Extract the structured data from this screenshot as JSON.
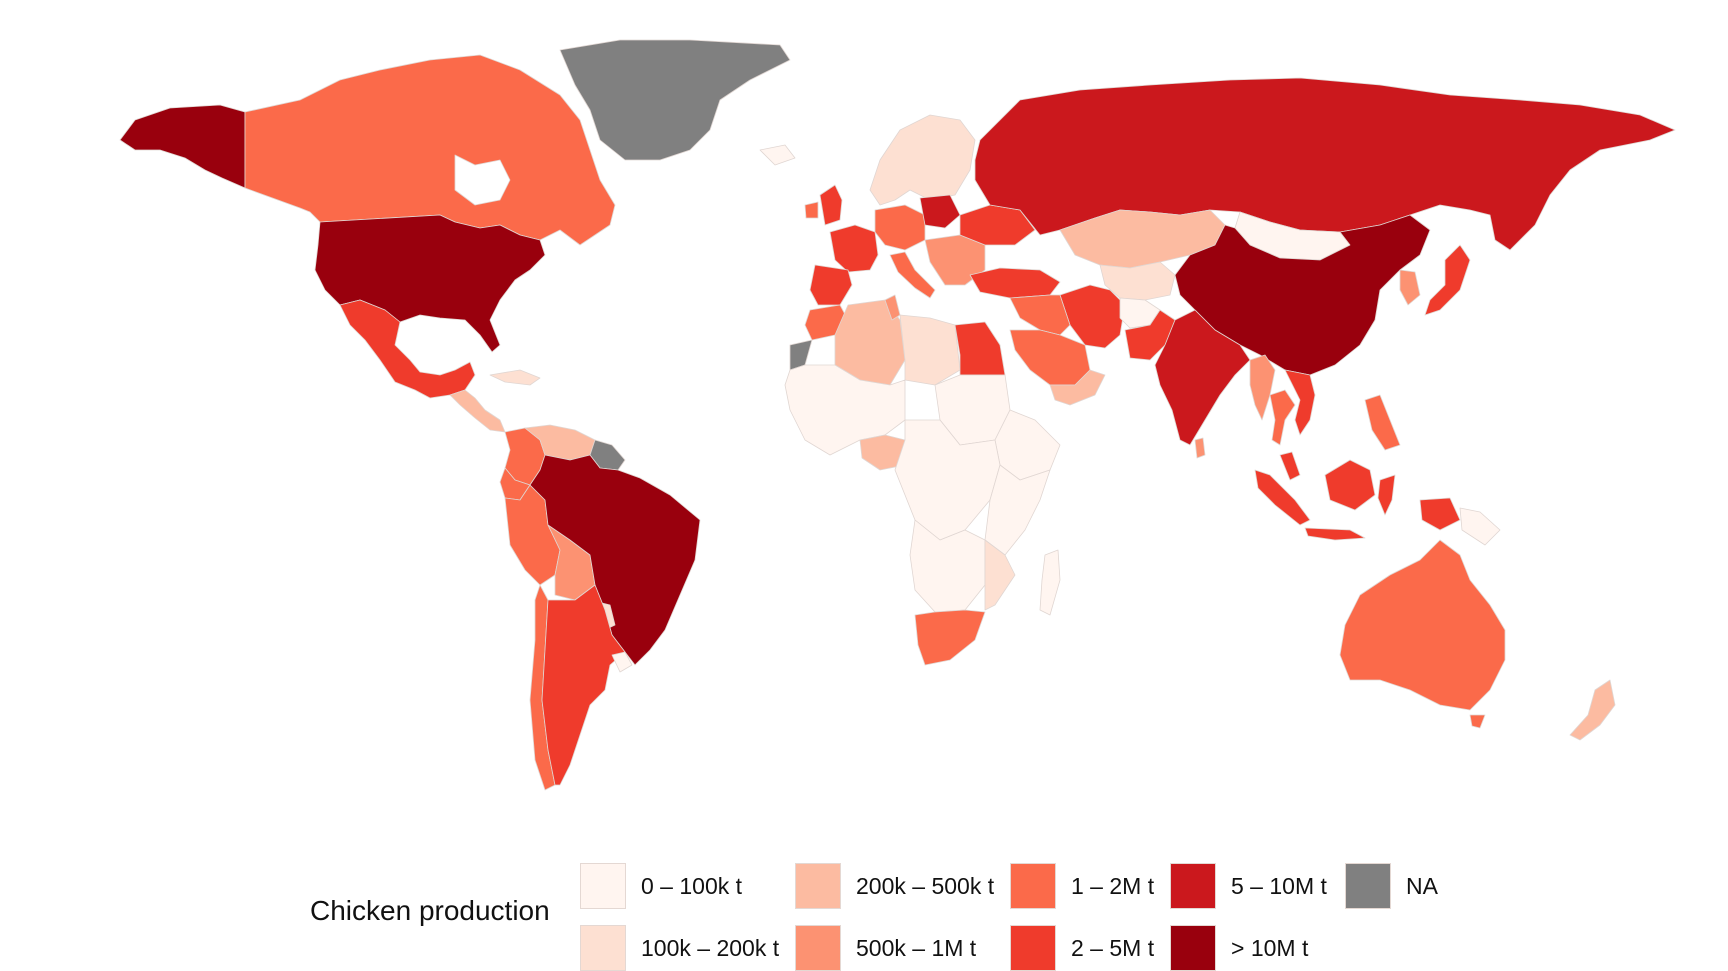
{
  "legend": {
    "title": "Chicken production",
    "items": [
      {
        "label": "0 – 100k t",
        "color": "#fff5f0"
      },
      {
        "label": "100k – 200k t",
        "color": "#fde0d2"
      },
      {
        "label": "200k – 500k t",
        "color": "#fcbba1"
      },
      {
        "label": "500k – 1M t",
        "color": "#fc9272"
      },
      {
        "label": "1 – 2M t",
        "color": "#fb6a4a"
      },
      {
        "label": "2 – 5M t",
        "color": "#ef3b2c"
      },
      {
        "label": "5 – 10M t",
        "color": "#cb181d"
      },
      {
        "label": "> 10M t",
        "color": "#99000d"
      },
      {
        "label": "NA",
        "color": "#808080"
      }
    ]
  },
  "regions": [
    {
      "id": "alaska",
      "class": 7
    },
    {
      "id": "canada",
      "class": 4
    },
    {
      "id": "greenland",
      "class": 8
    },
    {
      "id": "usa",
      "class": 7
    },
    {
      "id": "mexico",
      "class": 5
    },
    {
      "id": "central-america",
      "class": 2
    },
    {
      "id": "cuba",
      "class": 1
    },
    {
      "id": "colombia",
      "class": 4
    },
    {
      "id": "venezuela",
      "class": 2
    },
    {
      "id": "guianas",
      "class": 8
    },
    {
      "id": "ecuador",
      "class": 4
    },
    {
      "id": "peru",
      "class": 4
    },
    {
      "id": "bolivia",
      "class": 3
    },
    {
      "id": "brazil",
      "class": 7
    },
    {
      "id": "paraguay",
      "class": 1
    },
    {
      "id": "chile",
      "class": 4
    },
    {
      "id": "argentina",
      "class": 5
    },
    {
      "id": "uruguay",
      "class": 0
    },
    {
      "id": "iceland",
      "class": 0
    },
    {
      "id": "scandinavia",
      "class": 1
    },
    {
      "id": "uk",
      "class": 5
    },
    {
      "id": "ireland",
      "class": 4
    },
    {
      "id": "france",
      "class": 5
    },
    {
      "id": "iberia",
      "class": 5
    },
    {
      "id": "central-europe",
      "class": 4
    },
    {
      "id": "poland",
      "class": 6
    },
    {
      "id": "italy",
      "class": 4
    },
    {
      "id": "balkans",
      "class": 3
    },
    {
      "id": "ukraine",
      "class": 5
    },
    {
      "id": "turkey",
      "class": 5
    },
    {
      "id": "russia",
      "class": 6
    },
    {
      "id": "kazakhstan",
      "class": 2
    },
    {
      "id": "central-asia",
      "class": 1
    },
    {
      "id": "mongolia",
      "class": 0
    },
    {
      "id": "china",
      "class": 7
    },
    {
      "id": "japan",
      "class": 5
    },
    {
      "id": "korea",
      "class": 3
    },
    {
      "id": "iran",
      "class": 5
    },
    {
      "id": "iraq-syria",
      "class": 4
    },
    {
      "id": "saudi-arabia",
      "class": 4
    },
    {
      "id": "yemen-oman",
      "class": 2
    },
    {
      "id": "pakistan",
      "class": 5
    },
    {
      "id": "afghanistan",
      "class": 0
    },
    {
      "id": "india",
      "class": 6
    },
    {
      "id": "sri-lanka",
      "class": 3
    },
    {
      "id": "myanmar",
      "class": 3
    },
    {
      "id": "thailand",
      "class": 4
    },
    {
      "id": "vietnam",
      "class": 5
    },
    {
      "id": "malaysia",
      "class": 5
    },
    {
      "id": "sumatra",
      "class": 5
    },
    {
      "id": "java",
      "class": 5
    },
    {
      "id": "borneo",
      "class": 5
    },
    {
      "id": "sulawesi",
      "class": 5
    },
    {
      "id": "philippines",
      "class": 4
    },
    {
      "id": "new-guinea",
      "class": 5
    },
    {
      "id": "png",
      "class": 0
    },
    {
      "id": "australia",
      "class": 4
    },
    {
      "id": "tasmania",
      "class": 4
    },
    {
      "id": "new-zealand",
      "class": 2
    },
    {
      "id": "morocco",
      "class": 4
    },
    {
      "id": "western-sahara",
      "class": 8
    },
    {
      "id": "algeria",
      "class": 2
    },
    {
      "id": "tunisia",
      "class": 3
    },
    {
      "id": "libya",
      "class": 1
    },
    {
      "id": "egypt",
      "class": 5
    },
    {
      "id": "west-africa",
      "class": 0
    },
    {
      "id": "nigeria",
      "class": 2
    },
    {
      "id": "central-africa",
      "class": 0
    },
    {
      "id": "east-africa",
      "class": 0
    },
    {
      "id": "sudan",
      "class": 0
    },
    {
      "id": "ethiopia",
      "class": 0
    },
    {
      "id": "southern-africa",
      "class": 0
    },
    {
      "id": "mozambique",
      "class": 1
    },
    {
      "id": "south-africa",
      "class": 4
    },
    {
      "id": "madagascar",
      "class": 0
    }
  ]
}
